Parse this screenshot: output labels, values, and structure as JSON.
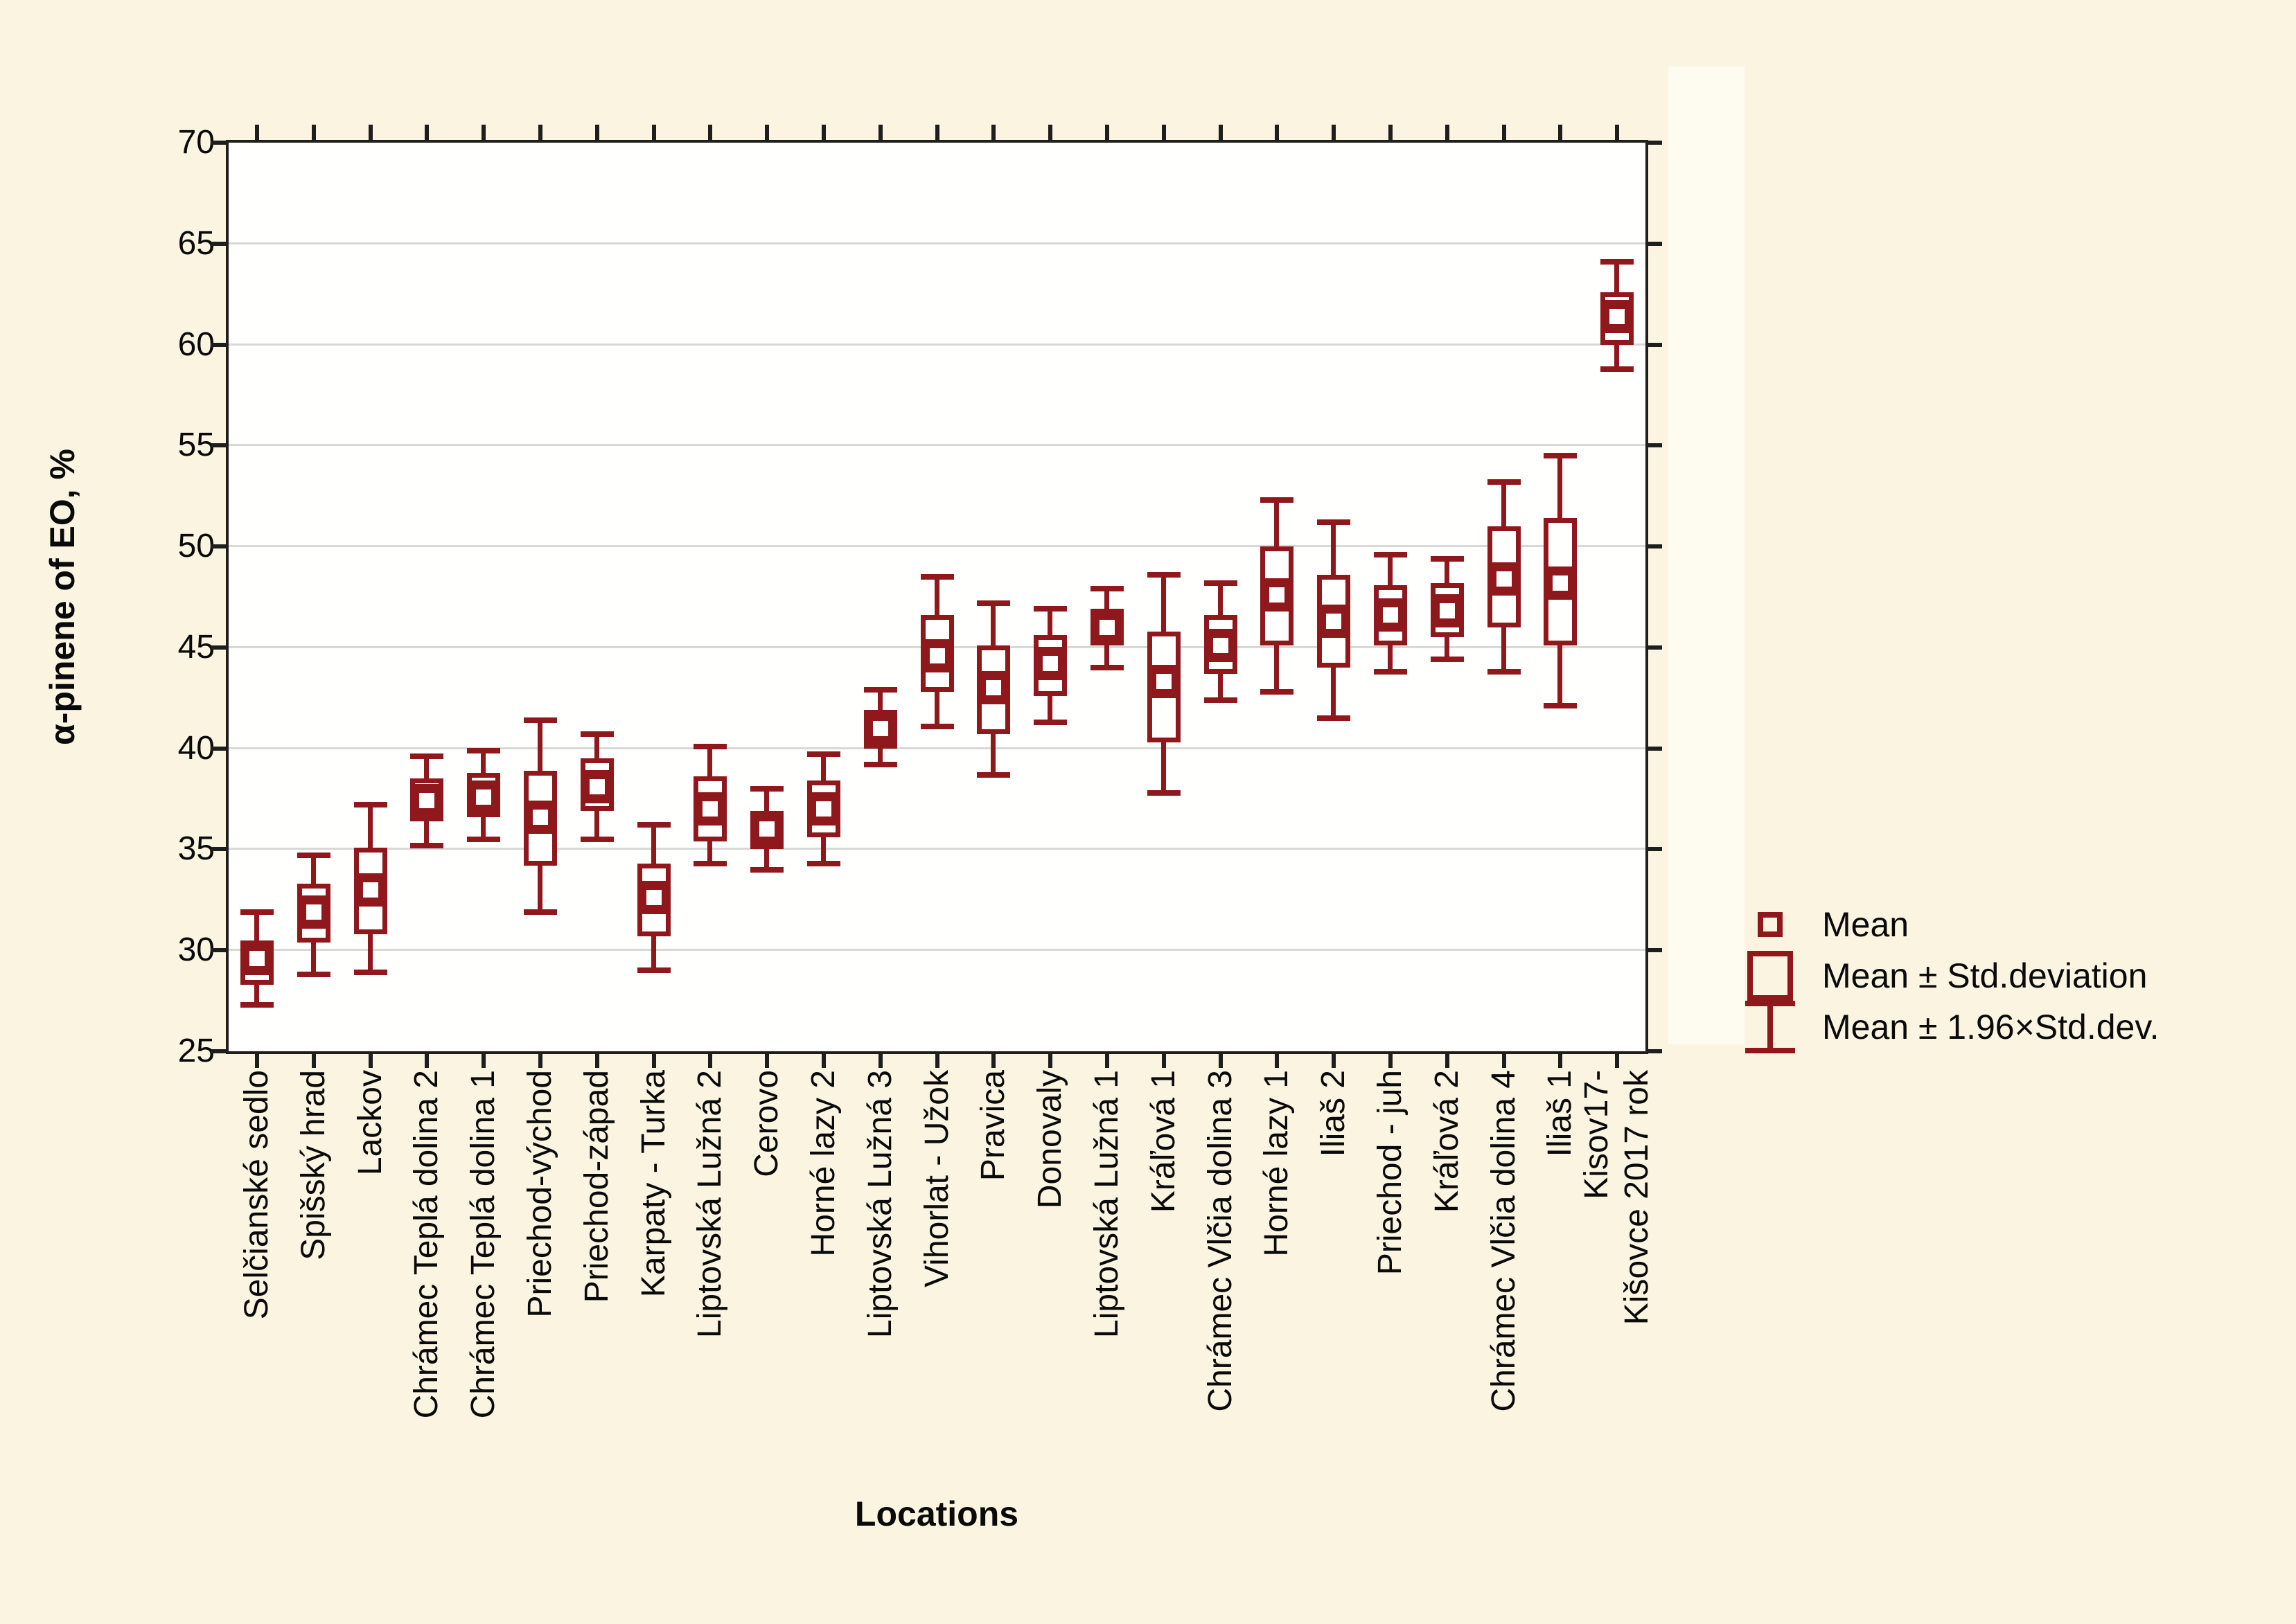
{
  "figure": {
    "background": "#FAF4E1",
    "plot_background": "#FFFFFD",
    "accent": "#8E181B",
    "grid_color": "#D8D8D8",
    "border_color": "#1E1E1E"
  },
  "y_axis": {
    "title": "α-pinene of EO, %",
    "min": 25,
    "max": 70,
    "step": 5
  },
  "x_axis": {
    "title": "Locations"
  },
  "legend": {
    "items": [
      {
        "marker": "mean-square",
        "label": "Mean"
      },
      {
        "marker": "std-box",
        "label": "Mean ± Std.deviation"
      },
      {
        "marker": "whisker",
        "label": "Mean ± 1.96×Std.dev."
      }
    ]
  },
  "chart_data": {
    "type": "box",
    "title": "",
    "xlabel": "Locations",
    "ylabel": "α-pinene of EO, %",
    "ylim": [
      25,
      70
    ],
    "grid": "horizontal",
    "legend_position": "right",
    "statistics": {
      "center": "Mean",
      "box": "Mean ± Std.deviation",
      "whisker": "Mean ± 1.96×Std.dev."
    },
    "points": [
      {
        "category": "Selčianské sedlo",
        "mean": 29.6,
        "sd_low": 28.3,
        "sd_high": 30.5,
        "w_low": 27.3,
        "w_high": 31.9
      },
      {
        "category": "Spišský hrad",
        "mean": 31.9,
        "sd_low": 30.4,
        "sd_high": 33.3,
        "w_low": 28.8,
        "w_high": 34.7
      },
      {
        "category": "Lackov",
        "mean": 33.0,
        "sd_low": 30.8,
        "sd_high": 35.1,
        "w_low": 28.9,
        "w_high": 37.2
      },
      {
        "category": "Chrámec Teplá dolina 2",
        "mean": 37.4,
        "sd_low": 36.4,
        "sd_high": 38.5,
        "w_low": 35.2,
        "w_high": 39.6
      },
      {
        "category": "Chrámec Teplá dolina 1",
        "mean": 37.6,
        "sd_low": 36.6,
        "sd_high": 38.8,
        "w_low": 35.5,
        "w_high": 39.9
      },
      {
        "category": "Priechod-východ",
        "mean": 36.6,
        "sd_low": 34.2,
        "sd_high": 38.9,
        "w_low": 31.9,
        "w_high": 41.4
      },
      {
        "category": "Priechod-západ",
        "mean": 38.1,
        "sd_low": 36.9,
        "sd_high": 39.5,
        "w_low": 35.5,
        "w_high": 40.7
      },
      {
        "category": "Karpaty - Turka",
        "mean": 32.6,
        "sd_low": 30.7,
        "sd_high": 34.3,
        "w_low": 29.0,
        "w_high": 36.2
      },
      {
        "category": "Liptovská Lužná 2",
        "mean": 37.0,
        "sd_low": 35.4,
        "sd_high": 38.6,
        "w_low": 34.3,
        "w_high": 40.1
      },
      {
        "category": "Cerovo",
        "mean": 36.0,
        "sd_low": 35.0,
        "sd_high": 36.9,
        "w_low": 34.0,
        "w_high": 38.0
      },
      {
        "category": "Horné lazy 2",
        "mean": 37.0,
        "sd_low": 35.6,
        "sd_high": 38.4,
        "w_low": 34.3,
        "w_high": 39.7
      },
      {
        "category": "Liptovská Lužná 3",
        "mean": 41.0,
        "sd_low": 40.0,
        "sd_high": 41.9,
        "w_low": 39.2,
        "w_high": 42.9
      },
      {
        "category": "Vihorlat - Užok",
        "mean": 44.6,
        "sd_low": 42.8,
        "sd_high": 46.6,
        "w_low": 41.1,
        "w_high": 48.5
      },
      {
        "category": "Pravica",
        "mean": 43.0,
        "sd_low": 40.7,
        "sd_high": 45.1,
        "w_low": 38.7,
        "w_high": 47.2
      },
      {
        "category": "Donovaly",
        "mean": 44.2,
        "sd_low": 42.6,
        "sd_high": 45.6,
        "w_low": 41.3,
        "w_high": 46.9
      },
      {
        "category": "Liptovská Lužná 1",
        "mean": 46.0,
        "sd_low": 45.1,
        "sd_high": 46.9,
        "w_low": 44.0,
        "w_high": 47.9
      },
      {
        "category": "Kráľová 1",
        "mean": 43.3,
        "sd_low": 40.3,
        "sd_high": 45.8,
        "w_low": 37.8,
        "w_high": 48.6
      },
      {
        "category": "Chrámec Vlčia dolina 3",
        "mean": 45.1,
        "sd_low": 43.7,
        "sd_high": 46.6,
        "w_low": 42.4,
        "w_high": 48.2
      },
      {
        "category": "Horné lazy 1",
        "mean": 47.6,
        "sd_low": 45.1,
        "sd_high": 50.0,
        "w_low": 42.8,
        "w_high": 52.3
      },
      {
        "category": "Iliaš 2",
        "mean": 46.3,
        "sd_low": 44.0,
        "sd_high": 48.6,
        "w_low": 41.5,
        "w_high": 51.2
      },
      {
        "category": "Priechod - juh",
        "mean": 46.6,
        "sd_low": 45.1,
        "sd_high": 48.1,
        "w_low": 43.8,
        "w_high": 49.6
      },
      {
        "category": "Kráľová 2",
        "mean": 46.8,
        "sd_low": 45.5,
        "sd_high": 48.2,
        "w_low": 44.4,
        "w_high": 49.4
      },
      {
        "category": "Chrámec Vlčia dolina 4",
        "mean": 48.4,
        "sd_low": 46.0,
        "sd_high": 51.0,
        "w_low": 43.8,
        "w_high": 53.2
      },
      {
        "category": "Iliaš 1",
        "mean": 48.2,
        "sd_low": 45.1,
        "sd_high": 51.4,
        "w_low": 42.1,
        "w_high": 54.5
      },
      {
        "category": "Kisov17-\nKišovce 2017 rok",
        "mean": 61.4,
        "sd_low": 60.0,
        "sd_high": 62.6,
        "w_low": 58.8,
        "w_high": 64.1
      }
    ]
  }
}
